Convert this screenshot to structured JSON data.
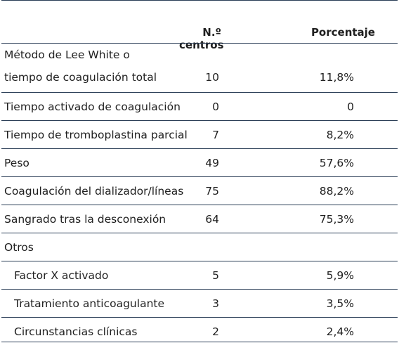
{
  "header": {
    "centros": "N.º centros",
    "porcentaje": "Porcentaje"
  },
  "rows": [
    {
      "label_line1": "Método de Lee White o",
      "label_line2": "tiempo de coagulación total",
      "centros": "10",
      "porcentaje": "11,8%"
    },
    {
      "label": "Tiempo activado de coagulación",
      "centros": "0",
      "porcentaje": "0"
    },
    {
      "label": "Tiempo de tromboplastina parcial",
      "centros": "7",
      "porcentaje": "8,2%"
    },
    {
      "label": "Peso",
      "centros": "49",
      "porcentaje": "57,6%"
    },
    {
      "label": "Coagulación del dializador/líneas",
      "centros": "75",
      "porcentaje": "88,2%"
    },
    {
      "label": "Sangrado tras la desconexión",
      "centros": "64",
      "porcentaje": "75,3%"
    },
    {
      "label": "Otros",
      "centros": "",
      "porcentaje": ""
    },
    {
      "label": "Factor X activado",
      "centros": "5",
      "porcentaje": "5,9%"
    },
    {
      "label": "Tratamiento anticoagulante",
      "centros": "3",
      "porcentaje": "3,5%"
    },
    {
      "label": "Circunstancias clínicas",
      "centros": "2",
      "porcentaje": "2,4%"
    }
  ]
}
